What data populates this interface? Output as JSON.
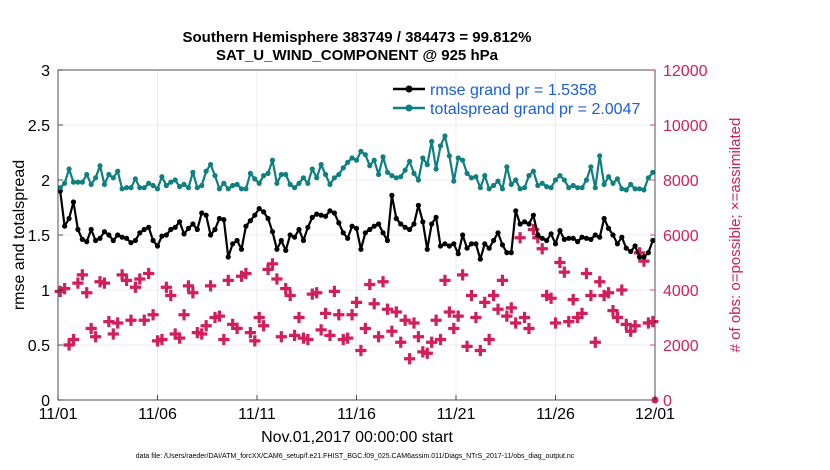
{
  "chart_data": {
    "type": "line",
    "title": "Southern Hemisphere 383749 / 384473 = 99.812%",
    "subtitle": "SAT_U_WIND_COMPONENT @ 925 hPa",
    "xlabel": "Nov.01,2017 00:00:00 start",
    "ylabel": "rmse and totalspread",
    "y2label": "# of obs: o=possible; ×=assimilated",
    "x_ticks": [
      "11/01",
      "11/06",
      "11/11",
      "11/16",
      "11/21",
      "11/26",
      "12/01"
    ],
    "xlim": [
      0,
      30
    ],
    "ylim": [
      0,
      3
    ],
    "y_ticks": [
      "0",
      "0.5",
      "1",
      "1.5",
      "2",
      "2.5",
      "3"
    ],
    "y2lim": [
      0,
      12000
    ],
    "y2_ticks": [
      "0",
      "2000",
      "4000",
      "6000",
      "8000",
      "10000",
      "12000"
    ],
    "grid": true,
    "legend_position": "top-right",
    "colors": {
      "rmse": "#000000",
      "totalspread": "#0f7f7f",
      "obs": "#d01f5c",
      "legend_text": "#1a5fd6"
    },
    "series": [
      {
        "name": "rmse grand pr = 1.5358",
        "color": "#000000",
        "values": [
          1.9,
          1.58,
          1.65,
          1.8,
          1.55,
          1.46,
          1.44,
          1.55,
          1.45,
          1.47,
          1.53,
          1.5,
          1.45,
          1.5,
          1.48,
          1.47,
          1.43,
          1.45,
          1.52,
          1.55,
          1.57,
          1.45,
          1.4,
          1.49,
          1.5,
          1.55,
          1.57,
          1.62,
          1.51,
          1.56,
          1.6,
          1.55,
          1.7,
          1.68,
          1.5,
          1.55,
          1.65,
          1.64,
          1.3,
          1.42,
          1.45,
          1.37,
          1.58,
          1.63,
          1.68,
          1.74,
          1.71,
          1.65,
          1.53,
          1.37,
          1.45,
          1.36,
          1.5,
          1.48,
          1.55,
          1.45,
          1.57,
          1.66,
          1.69,
          1.68,
          1.67,
          1.72,
          1.7,
          1.61,
          1.52,
          1.47,
          1.58,
          1.56,
          1.37,
          1.52,
          1.55,
          1.58,
          1.6,
          1.52,
          1.45,
          1.86,
          1.65,
          1.6,
          1.57,
          1.55,
          1.6,
          1.77,
          1.62,
          1.37,
          1.6,
          1.66,
          1.4,
          1.42,
          1.4,
          1.42,
          1.33,
          1.5,
          1.38,
          1.42,
          1.42,
          1.28,
          1.42,
          1.38,
          1.45,
          1.52,
          1.41,
          1.34,
          1.34,
          1.72,
          1.6,
          1.62,
          1.6,
          1.68,
          1.5,
          1.47,
          1.45,
          1.51,
          1.42,
          1.54,
          1.46,
          1.47,
          1.47,
          1.44,
          1.48,
          1.47,
          1.46,
          1.5,
          1.48,
          1.65,
          1.56,
          1.5,
          1.42,
          1.48,
          1.38,
          1.35,
          1.4,
          1.3,
          1.3,
          1.34,
          1.45
        ]
      },
      {
        "name": "totalspread grand pr = 2.0047",
        "color": "#0f7f7f",
        "values": [
          1.93,
          1.97,
          2.1,
          1.98,
          1.98,
          1.98,
          2.05,
          1.96,
          2.02,
          2.13,
          1.96,
          2.05,
          2.02,
          2.08,
          1.92,
          1.93,
          1.93,
          2.01,
          1.93,
          1.93,
          1.97,
          1.95,
          1.92,
          2.03,
          1.95,
          1.98,
          2.0,
          1.94,
          1.96,
          1.93,
          2.07,
          1.93,
          1.95,
          2.08,
          2.14,
          2.04,
          1.92,
          1.97,
          1.92,
          1.95,
          1.96,
          1.92,
          1.92,
          2.06,
          2.01,
          1.97,
          2.04,
          2.06,
          2.18,
          1.97,
          2.05,
          2.05,
          1.96,
          1.93,
          1.97,
          2.02,
          1.97,
          2.1,
          2.02,
          2.14,
          2.05,
          1.96,
          2.02,
          2.05,
          2.11,
          2.16,
          2.2,
          2.18,
          2.26,
          2.23,
          2.13,
          2.18,
          2.05,
          2.21,
          2.07,
          2.04,
          2.02,
          2.03,
          2.09,
          2.17,
          2.06,
          2.0,
          2.2,
          2.14,
          2.35,
          2.1,
          2.31,
          2.4,
          2.22,
          1.99,
          2.2,
          2.18,
          2.06,
          2.02,
          2.03,
          1.93,
          2.04,
          1.92,
          1.95,
          1.99,
          1.92,
          2.12,
          1.96,
          2.0,
          1.92,
          1.93,
          2.04,
          2.08,
          1.95,
          1.97,
          1.94,
          1.93,
          2.0,
          2.04,
          2.0,
          1.93,
          1.95,
          1.93,
          1.93,
          2.0,
          2.12,
          1.93,
          2.22,
          1.96,
          2.03,
          1.97,
          2.01,
          1.92,
          1.91,
          1.96,
          1.92,
          1.92,
          1.91,
          2.02,
          2.07
        ]
      }
    ],
    "obs_series": {
      "y_axis": "right",
      "color": "#d01f5c",
      "marker": "plus",
      "values": [
        3950,
        4050,
        2000,
        2200,
        4250,
        4550,
        3900,
        2600,
        2300,
        4300,
        4250,
        2850,
        2400,
        2800,
        4550,
        4350,
        2900,
        4100,
        4400,
        2900,
        4600,
        3100,
        2150,
        2200,
        4100,
        3800,
        2400,
        2250,
        3100,
        4150,
        3900,
        2450,
        2400,
        2700,
        4150,
        3000,
        3050,
        2200,
        4350,
        2750,
        2600,
        4500,
        4600,
        2450,
        2150,
        3000,
        2700,
        4750,
        4950,
        4400,
        2300,
        4050,
        3800,
        2350,
        3000,
        2250,
        2200,
        3850,
        3900,
        2550,
        3150,
        2350,
        3950,
        3100,
        2200,
        2250,
        3100,
        3550,
        1800,
        2600,
        4200,
        3500,
        2300,
        4300,
        3300,
        2500,
        3200,
        2100,
        2900,
        1500,
        2800,
        2300,
        1750,
        1700,
        2100,
        2900,
        2200,
        4350,
        3200,
        2600,
        3050,
        4550,
        1950,
        3800,
        3000,
        1800,
        3550,
        2200,
        3800,
        3300,
        4350,
        3050,
        3350,
        2800,
        5900,
        3000,
        2600,
        6200,
        5900,
        5500,
        3800,
        3700,
        2800,
        5000,
        4650,
        2850,
        3650,
        3000,
        3150,
        4600,
        3800,
        2100,
        4300,
        3800,
        3900,
        3250,
        3000,
        4000,
        2750,
        2500,
        2700,
        5350,
        5050,
        2800,
        2850
      ]
    }
  },
  "footnote": "data file: /Users/raeder/DAI/ATM_forcXX/CAM6_setup/f.e21.FHIST_BGC.f09_025.CAM6assim.011/Diags_NTrS_2017-11/obs_diag_output.nc"
}
